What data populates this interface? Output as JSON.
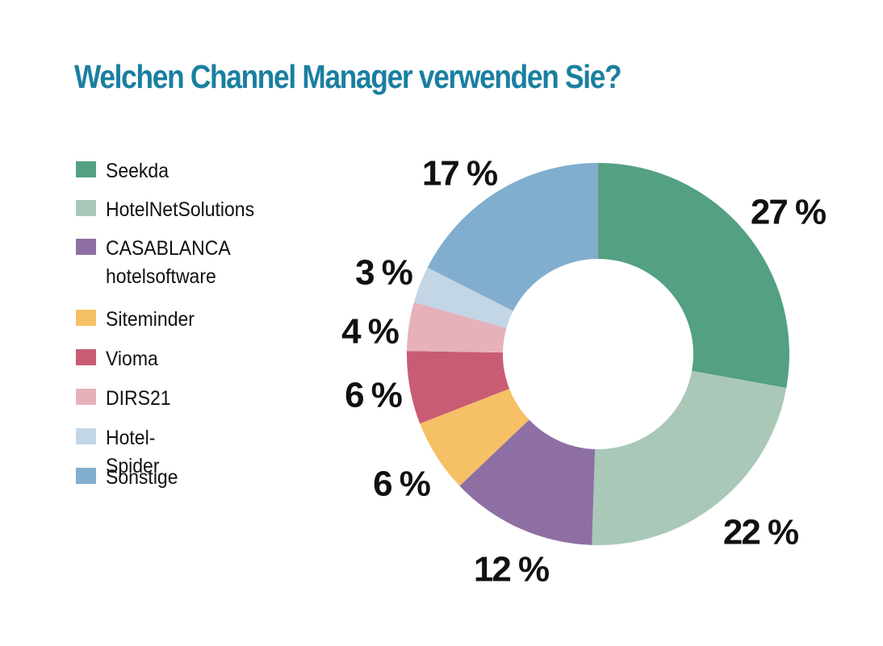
{
  "chart_data": {
    "type": "pie",
    "title": "Welchen Channel Manager verwenden Sie?",
    "legend_position": "left",
    "unit": "%",
    "slices": [
      {
        "name": "Seekda",
        "value": 27,
        "label": "27 %",
        "color": "#53a083"
      },
      {
        "name": "HotelNetSolutions",
        "value": 22,
        "label": "22 %",
        "color": "#a9c8b8"
      },
      {
        "name": "CASABLANCA\nhotelsoftware",
        "value": 12,
        "label": "12 %",
        "color": "#8e6fa4"
      },
      {
        "name": "Siteminder",
        "value": 6,
        "label": "6 %",
        "color": "#f5c066"
      },
      {
        "name": "Vioma",
        "value": 6,
        "label": "6 %",
        "color": "#c95c74"
      },
      {
        "name": "DIRS21",
        "value": 4,
        "label": "4 %",
        "color": "#e6b1bb"
      },
      {
        "name": "Hotel-Spider",
        "value": 3,
        "label": "3 %",
        "color": "#c3d6e6"
      },
      {
        "name": "Sonstige",
        "value": 17,
        "label": "17 %",
        "color": "#81aecf"
      }
    ]
  }
}
